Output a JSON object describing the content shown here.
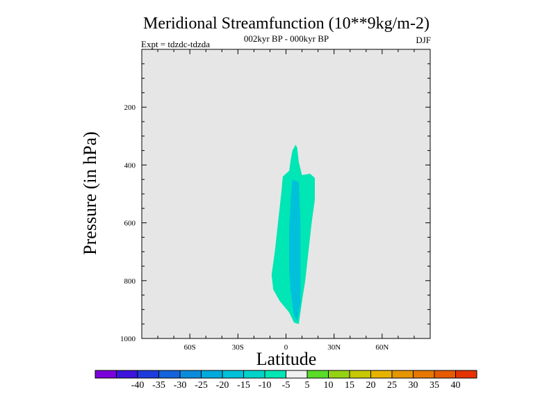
{
  "chart_data": {
    "type": "contour",
    "title": "Meridional Streamfunction (10**9kg/m-2)",
    "subtitle": "002kyr BP - 000kyr BP",
    "experiment": "Expt = tdzdc-tdzda",
    "season": "DJF",
    "xlabel": "Latitude",
    "ylabel": "Pressure (in hPa)",
    "xlim": [
      -90,
      90
    ],
    "ylim": [
      1000,
      0
    ],
    "x_ticks": [
      {
        "value": -60,
        "label": "60S"
      },
      {
        "value": -30,
        "label": "30S"
      },
      {
        "value": 0,
        "label": "0"
      },
      {
        "value": 30,
        "label": "30N"
      },
      {
        "value": 60,
        "label": "60N"
      }
    ],
    "y_ticks": [
      {
        "value": 200,
        "label": "200"
      },
      {
        "value": 400,
        "label": "400"
      },
      {
        "value": 600,
        "label": "600"
      },
      {
        "value": 800,
        "label": "800"
      },
      {
        "value": 1000,
        "label": "1000"
      }
    ],
    "background_color": "#e6e6e6",
    "contour_regions": [
      {
        "level_range": [
          -10,
          -5
        ],
        "color": "#00e6b4",
        "outline": [
          {
            "lat": 6,
            "p": 330
          },
          {
            "lat": 7,
            "p": 340
          },
          {
            "lat": 8,
            "p": 390
          },
          {
            "lat": 10,
            "p": 435
          },
          {
            "lat": 15,
            "p": 430
          },
          {
            "lat": 18,
            "p": 445
          },
          {
            "lat": 18,
            "p": 520
          },
          {
            "lat": 16,
            "p": 600
          },
          {
            "lat": 14,
            "p": 700
          },
          {
            "lat": 12,
            "p": 800
          },
          {
            "lat": 10,
            "p": 870
          },
          {
            "lat": 8,
            "p": 950
          },
          {
            "lat": 5,
            "p": 945
          },
          {
            "lat": 2,
            "p": 910
          },
          {
            "lat": -4,
            "p": 870
          },
          {
            "lat": -8,
            "p": 830
          },
          {
            "lat": -9,
            "p": 780
          },
          {
            "lat": -7,
            "p": 700
          },
          {
            "lat": -5,
            "p": 600
          },
          {
            "lat": -3,
            "p": 500
          },
          {
            "lat": -2,
            "p": 440
          },
          {
            "lat": 2,
            "p": 420
          },
          {
            "lat": 3,
            "p": 380
          },
          {
            "lat": 4,
            "p": 350
          }
        ]
      },
      {
        "level_range": [
          -15,
          -10
        ],
        "color": "#00c0da",
        "outline": [
          {
            "lat": 4,
            "p": 450
          },
          {
            "lat": 8,
            "p": 460
          },
          {
            "lat": 9,
            "p": 600
          },
          {
            "lat": 9,
            "p": 700
          },
          {
            "lat": 9,
            "p": 800
          },
          {
            "lat": 9,
            "p": 880
          },
          {
            "lat": 7,
            "p": 940
          },
          {
            "lat": 5,
            "p": 920
          },
          {
            "lat": 3,
            "p": 840
          },
          {
            "lat": 2,
            "p": 760
          },
          {
            "lat": 2,
            "p": 620
          },
          {
            "lat": 3,
            "p": 520
          }
        ]
      }
    ],
    "colorbar": {
      "labels": [
        "-40",
        "-35",
        "-30",
        "-25",
        "-20",
        "-15",
        "-10",
        "-5",
        "5",
        "10",
        "15",
        "20",
        "25",
        "30",
        "35",
        "40"
      ],
      "colors": [
        "#7b00dc",
        "#3c14dc",
        "#1e3cdc",
        "#1464dc",
        "#0a8cdc",
        "#00aadc",
        "#00c0da",
        "#00d2c8",
        "#00e6b4",
        "#f0f0f0",
        "#5adc28",
        "#96d214",
        "#c8c800",
        "#e6b400",
        "#e69600",
        "#e67800",
        "#e65a00",
        "#e63200"
      ]
    }
  }
}
